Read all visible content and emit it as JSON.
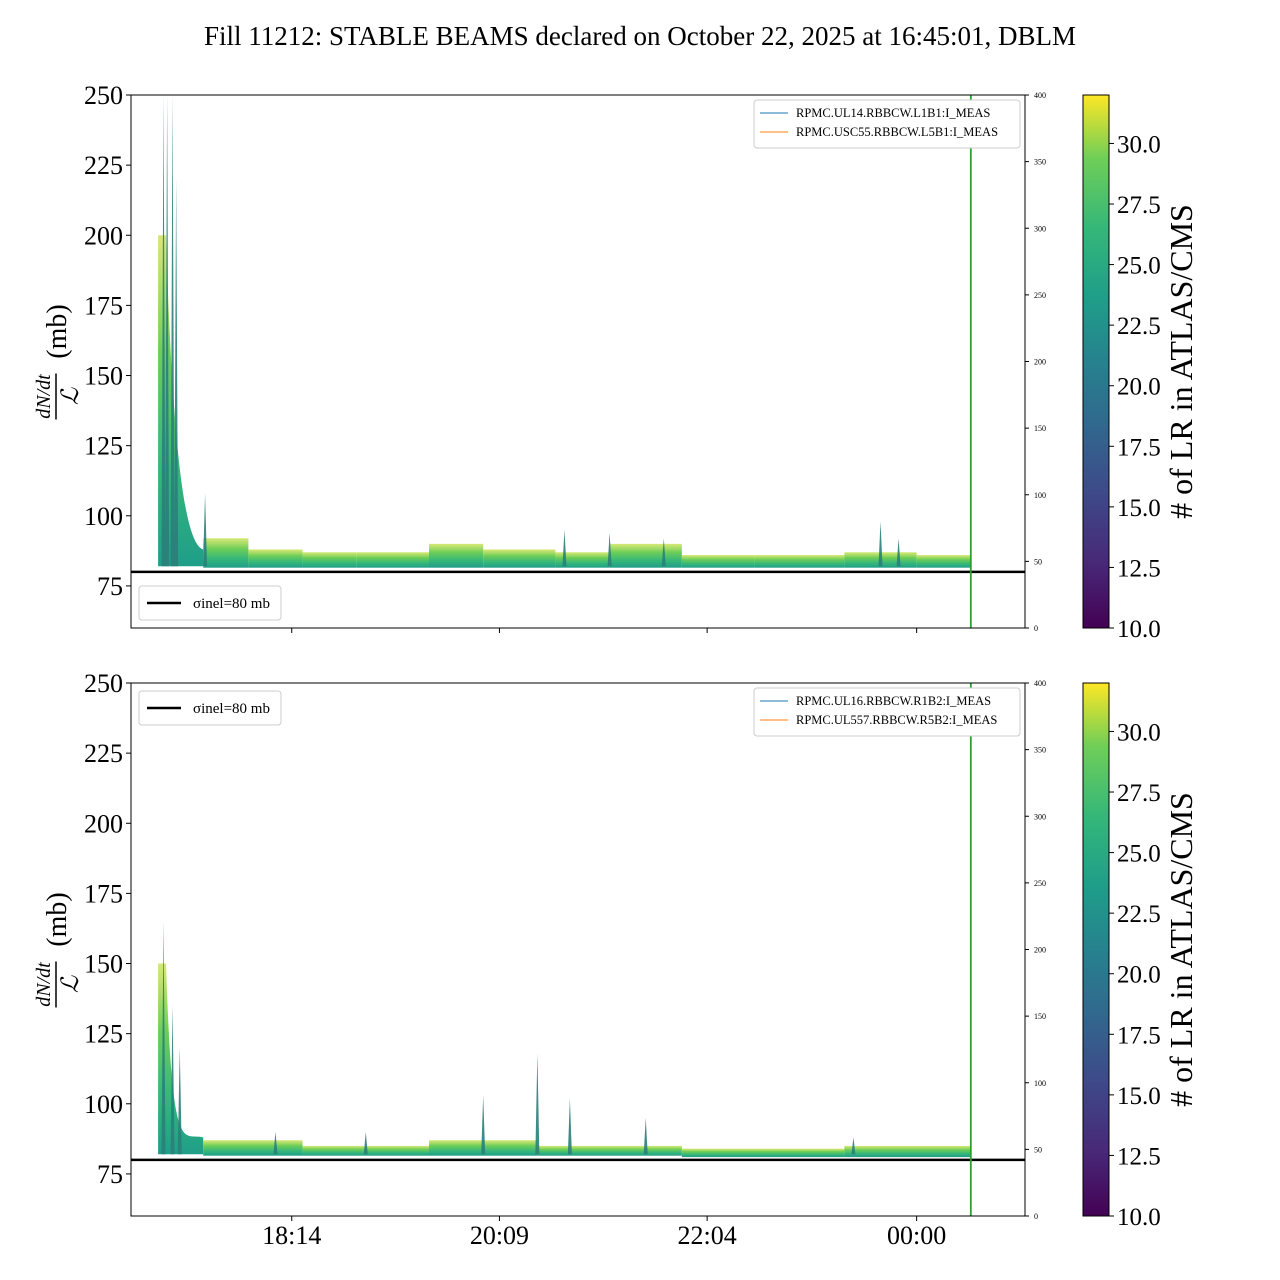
{
  "figure": {
    "title": "Fill 11212: STABLE BEAMS declared on October 22, 2025 at 16:45:01, DBLM"
  },
  "colorbar": {
    "label": "# of LR in ATLAS/CMS",
    "min": 10.0,
    "max": 32.0,
    "ticks": [
      "10.0",
      "12.5",
      "15.0",
      "17.5",
      "20.0",
      "22.5",
      "25.0",
      "27.5",
      "30.0"
    ],
    "colormap": "viridis"
  },
  "chart_data": [
    {
      "type": "line",
      "panel": "top",
      "ylabel": "dN/dt / ℒ (mb)",
      "ylabel_fraction": {
        "numerator": "dN/dt",
        "denominator": "ℒ",
        "unit": "(mb)"
      },
      "ylim": [
        60,
        250
      ],
      "yticks": [
        "75",
        "100",
        "125",
        "150",
        "175",
        "200",
        "225",
        "250"
      ],
      "y2lim": [
        0,
        400
      ],
      "y2ticks": [
        "0",
        "50",
        "100",
        "150",
        "200",
        "250",
        "300",
        "350",
        "400"
      ],
      "xticks": [
        "18:14",
        "20:09",
        "22:04",
        "00:00"
      ],
      "xtick_labels_visible": false,
      "legend_left": {
        "label": "σinel=80 mb",
        "position": "bottom-left"
      },
      "legend_right": {
        "position": "top-right",
        "entries": [
          {
            "name": "RPMC.UL14.RBBCW.L1B1:I_MEAS",
            "color": "#1f77b4"
          },
          {
            "name": "RPMC.USC55.RBBCW.L5B1:I_MEAS",
            "color": "#ff7f0e"
          }
        ]
      },
      "hline": {
        "y": 80,
        "color": "#000000"
      },
      "vline_time": "00:30",
      "vline_color": "#2ca02c",
      "time_range": [
        "16:45",
        "01:00"
      ],
      "segments": [
        {
          "start": "17:00",
          "end": "17:25",
          "top": 200,
          "bottom": 82
        },
        {
          "start": "17:25",
          "end": "17:50",
          "top": 92,
          "bottom": 81.5
        },
        {
          "start": "17:50",
          "end": "18:20",
          "top": 88,
          "bottom": 81.5
        },
        {
          "start": "18:20",
          "end": "18:50",
          "top": 87,
          "bottom": 81.5
        },
        {
          "start": "18:50",
          "end": "19:30",
          "top": 87,
          "bottom": 81.5
        },
        {
          "start": "19:30",
          "end": "20:00",
          "top": 90,
          "bottom": 81.5
        },
        {
          "start": "20:00",
          "end": "20:40",
          "top": 88,
          "bottom": 81.5
        },
        {
          "start": "20:40",
          "end": "21:10",
          "top": 87,
          "bottom": 81.5
        },
        {
          "start": "21:10",
          "end": "21:50",
          "top": 90,
          "bottom": 81.5
        },
        {
          "start": "21:50",
          "end": "22:30",
          "top": 86,
          "bottom": 81.5
        },
        {
          "start": "22:30",
          "end": "23:20",
          "top": 86,
          "bottom": 81.5
        },
        {
          "start": "23:20",
          "end": "00:00",
          "top": 87,
          "bottom": 81.5
        },
        {
          "start": "00:00",
          "end": "00:30",
          "top": 86,
          "bottom": 81.5
        }
      ],
      "spikes": [
        {
          "time": "17:03",
          "value": 250
        },
        {
          "time": "17:05",
          "value": 250
        },
        {
          "time": "17:08",
          "value": 250
        },
        {
          "time": "17:10",
          "value": 220
        },
        {
          "time": "17:26",
          "value": 108
        },
        {
          "time": "20:45",
          "value": 95
        },
        {
          "time": "21:10",
          "value": 94
        },
        {
          "time": "21:40",
          "value": 92
        },
        {
          "time": "23:40",
          "value": 98
        },
        {
          "time": "23:50",
          "value": 92
        }
      ]
    },
    {
      "type": "line",
      "panel": "bottom",
      "ylabel": "dN/dt / ℒ (mb)",
      "ylabel_fraction": {
        "numerator": "dN/dt",
        "denominator": "ℒ",
        "unit": "(mb)"
      },
      "ylim": [
        60,
        250
      ],
      "yticks": [
        "75",
        "100",
        "125",
        "150",
        "175",
        "200",
        "225",
        "250"
      ],
      "y2lim": [
        0,
        400
      ],
      "y2ticks": [
        "0",
        "50",
        "100",
        "150",
        "200",
        "250",
        "300",
        "350",
        "400"
      ],
      "xticks": [
        "18:14",
        "20:09",
        "22:04",
        "00:00"
      ],
      "xtick_labels_visible": true,
      "legend_left": {
        "label": "σinel=80 mb",
        "position": "top-left"
      },
      "legend_right": {
        "position": "top-right",
        "entries": [
          {
            "name": "RPMC.UL16.RBBCW.R1B2:I_MEAS",
            "color": "#1f77b4"
          },
          {
            "name": "RPMC.UL557.RBBCW.R5B2:I_MEAS",
            "color": "#ff7f0e"
          }
        ]
      },
      "hline": {
        "y": 80,
        "color": "#000000"
      },
      "vline_time": "00:30",
      "vline_color": "#2ca02c",
      "time_range": [
        "16:45",
        "01:00"
      ],
      "segments": [
        {
          "start": "17:00",
          "end": "17:25",
          "top": 150,
          "bottom": 82
        },
        {
          "start": "17:25",
          "end": "18:20",
          "top": 87,
          "bottom": 81.5
        },
        {
          "start": "18:20",
          "end": "19:30",
          "top": 85,
          "bottom": 81.5
        },
        {
          "start": "19:30",
          "end": "20:30",
          "top": 87,
          "bottom": 81.5
        },
        {
          "start": "20:30",
          "end": "21:50",
          "top": 85,
          "bottom": 81.5
        },
        {
          "start": "21:50",
          "end": "23:20",
          "top": 84,
          "bottom": 81
        },
        {
          "start": "23:20",
          "end": "00:30",
          "top": 85,
          "bottom": 81
        }
      ],
      "spikes": [
        {
          "time": "17:03",
          "value": 165
        },
        {
          "time": "17:08",
          "value": 135
        },
        {
          "time": "17:12",
          "value": 120
        },
        {
          "time": "18:05",
          "value": 90
        },
        {
          "time": "18:55",
          "value": 90
        },
        {
          "time": "20:00",
          "value": 103
        },
        {
          "time": "20:30",
          "value": 118
        },
        {
          "time": "20:48",
          "value": 102
        },
        {
          "time": "21:30",
          "value": 95
        },
        {
          "time": "23:25",
          "value": 88
        }
      ]
    }
  ]
}
